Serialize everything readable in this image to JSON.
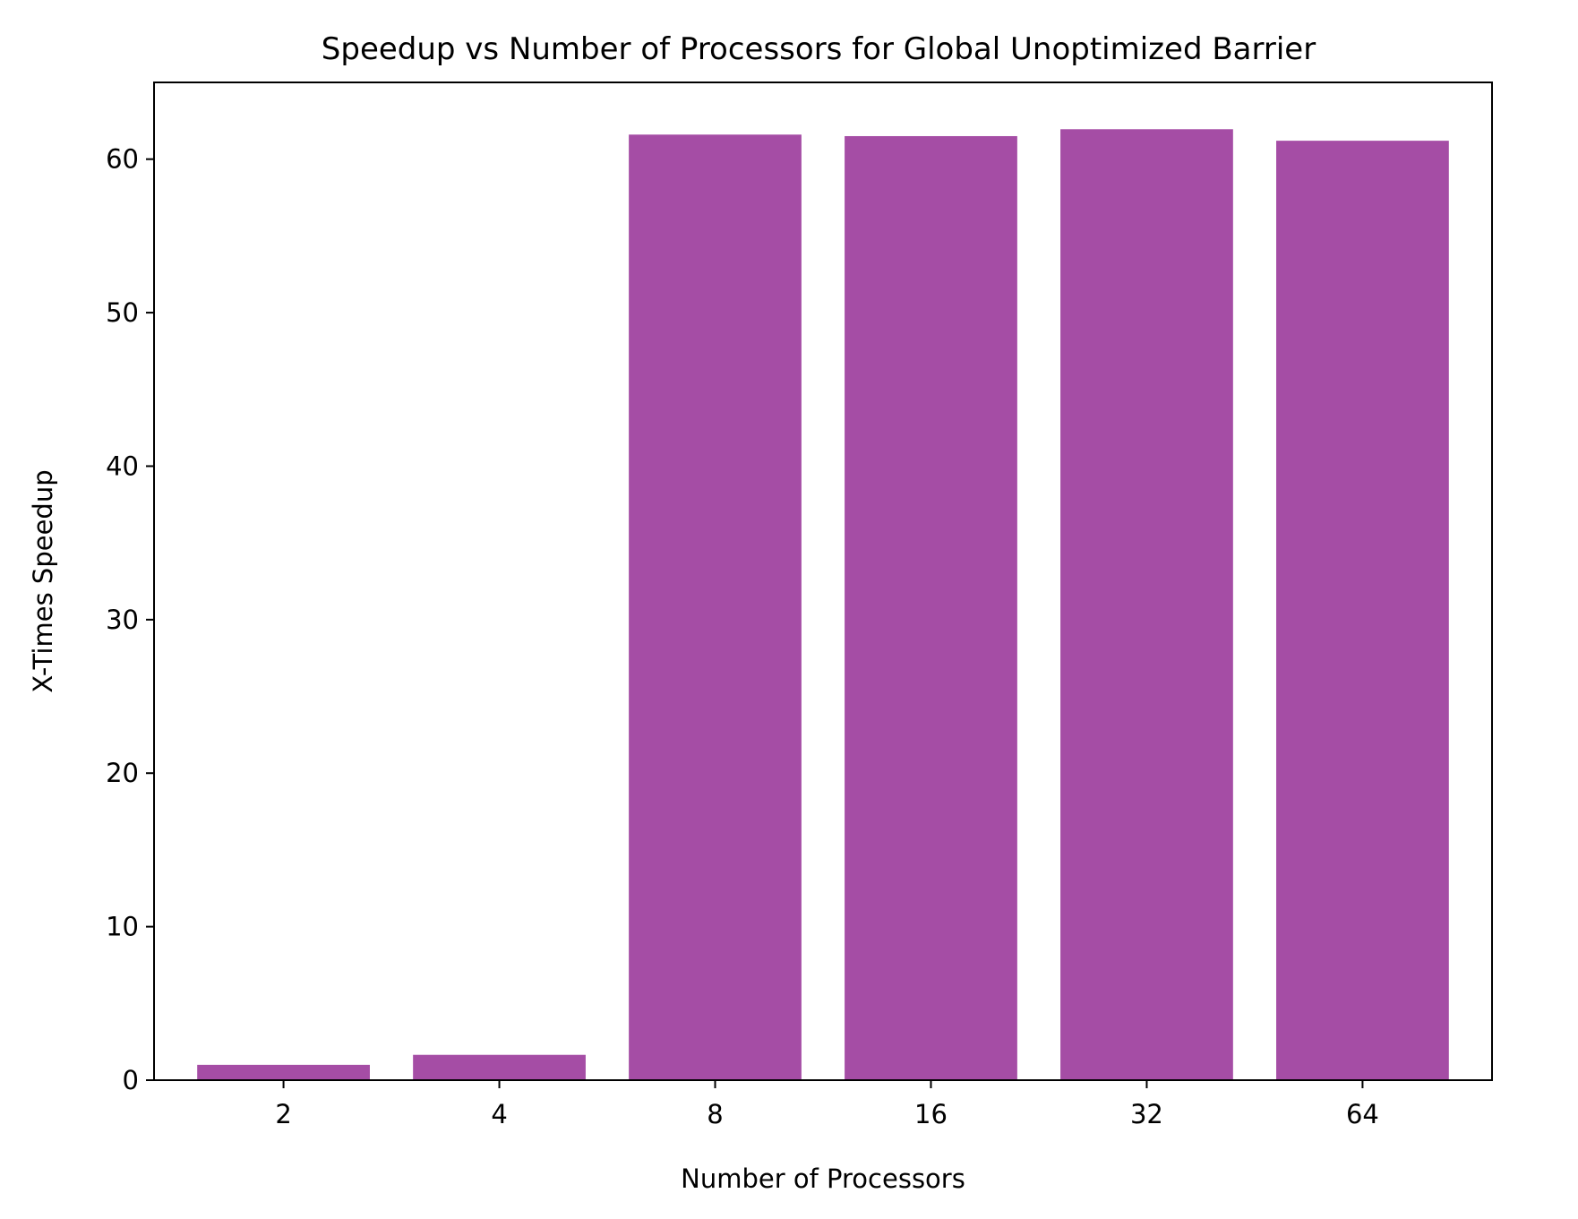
{
  "chart_data": {
    "type": "bar",
    "title": "Speedup vs Number of Processors for Global Unoptimized Barrier",
    "xlabel": "Number of Processors",
    "ylabel": "X-Times Speedup",
    "categories": [
      "2",
      "4",
      "8",
      "16",
      "32",
      "64"
    ],
    "values": [
      1.0,
      1.65,
      61.6,
      61.5,
      61.95,
      61.2
    ],
    "ylim": [
      0,
      65
    ],
    "yticks": [
      0,
      10,
      20,
      30,
      40,
      50,
      60
    ],
    "bar_color": "#a54da5",
    "grid": false,
    "legend": "none"
  }
}
